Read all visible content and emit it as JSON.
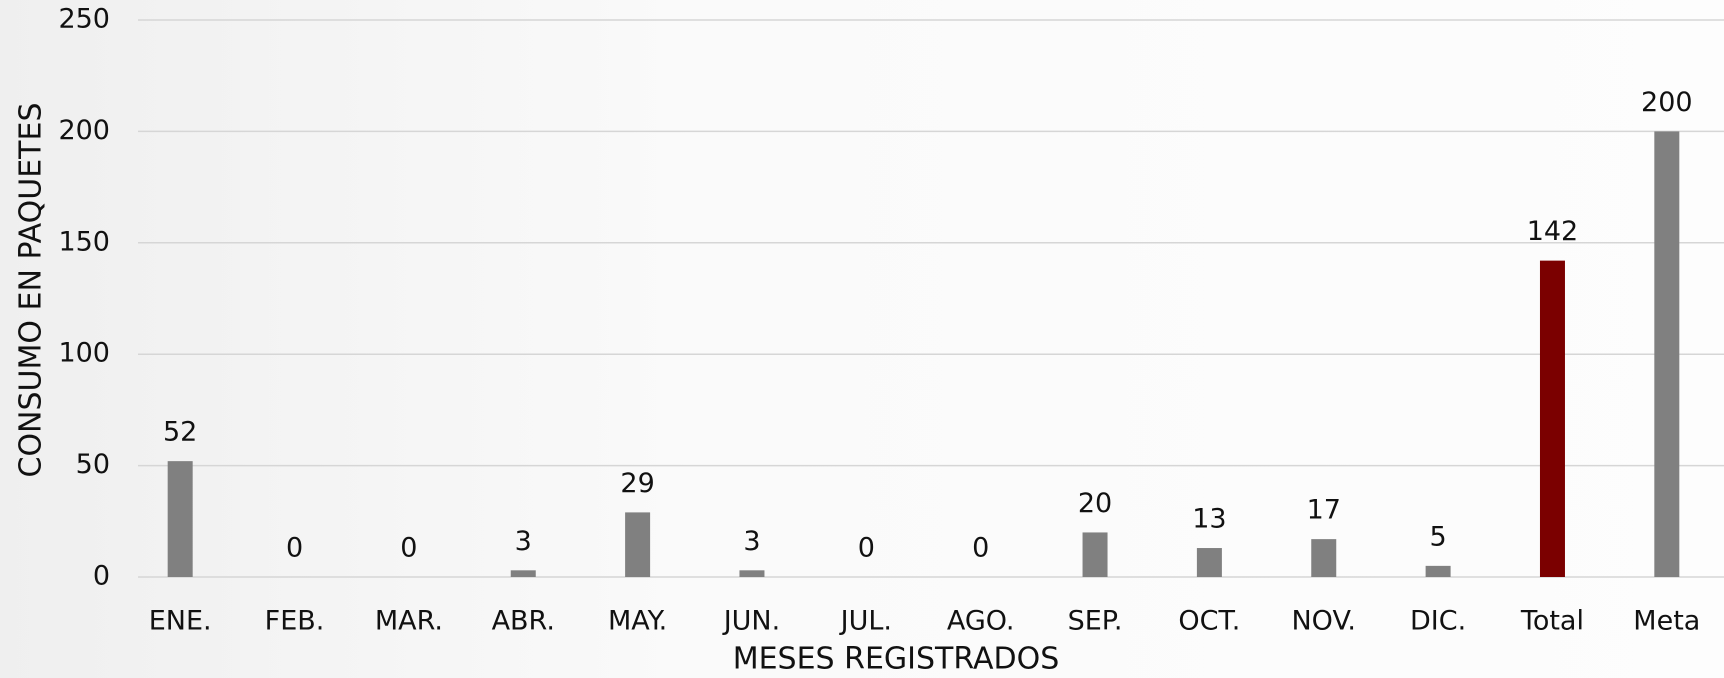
{
  "chart_data": {
    "type": "bar",
    "x_label": "MESES REGISTRADOS",
    "y_label": "CONSUMO EN PAQUETES",
    "categories": [
      "ENE.",
      "FEB.",
      "MAR.",
      "ABR.",
      "MAY.",
      "JUN.",
      "JUL.",
      "AGO.",
      "SEP.",
      "OCT.",
      "NOV.",
      "DIC.",
      "Total",
      "Meta"
    ],
    "values": [
      52,
      0,
      0,
      3,
      29,
      3,
      0,
      0,
      20,
      13,
      17,
      5,
      142,
      200
    ],
    "colors": [
      "#808080",
      "#808080",
      "#808080",
      "#808080",
      "#808080",
      "#808080",
      "#808080",
      "#808080",
      "#808080",
      "#808080",
      "#808080",
      "#808080",
      "#7b0000",
      "#808080"
    ],
    "ylim": [
      0,
      250
    ],
    "yticks": [
      0,
      50,
      100,
      150,
      200,
      250
    ],
    "grid": true
  }
}
